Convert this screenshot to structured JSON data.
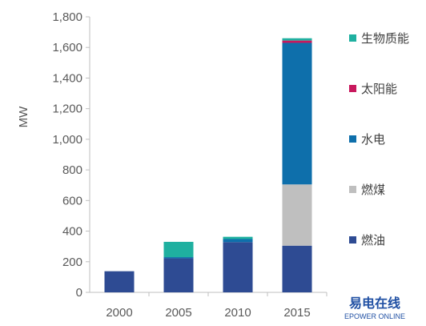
{
  "chart_data": {
    "type": "bar",
    "stacked": true,
    "categories": [
      "2000",
      "2005",
      "2010",
      "2015"
    ],
    "series": [
      {
        "name": "燃油",
        "color": "#2e4b93",
        "values": [
          138,
          222,
          328,
          305
        ]
      },
      {
        "name": "燃煤",
        "color": "#bfbfbf",
        "values": [
          0,
          0,
          0,
          400
        ]
      },
      {
        "name": "水电",
        "color": "#0e6fab",
        "values": [
          0,
          8,
          20,
          925
        ]
      },
      {
        "name": "太阳能",
        "color": "#c8185d",
        "values": [
          0,
          0,
          0,
          15
        ]
      },
      {
        "name": "生物质能",
        "color": "#1fb0a0",
        "values": [
          0,
          100,
          15,
          15
        ]
      }
    ],
    "ylabel": "MW",
    "xlabel": "",
    "ylim": [
      0,
      1800
    ],
    "yticks": [
      "0",
      "200",
      "400",
      "600",
      "800",
      "1,000",
      "1,200",
      "1,400",
      "1,600",
      "1,800"
    ],
    "grid": false,
    "legend_position": "right",
    "legend_order": [
      "生物质能",
      "太阳能",
      "水电",
      "燃煤",
      "燃油"
    ]
  },
  "watermark": {
    "title": "易电在线",
    "subtitle": "EPOWER ONLINE"
  }
}
